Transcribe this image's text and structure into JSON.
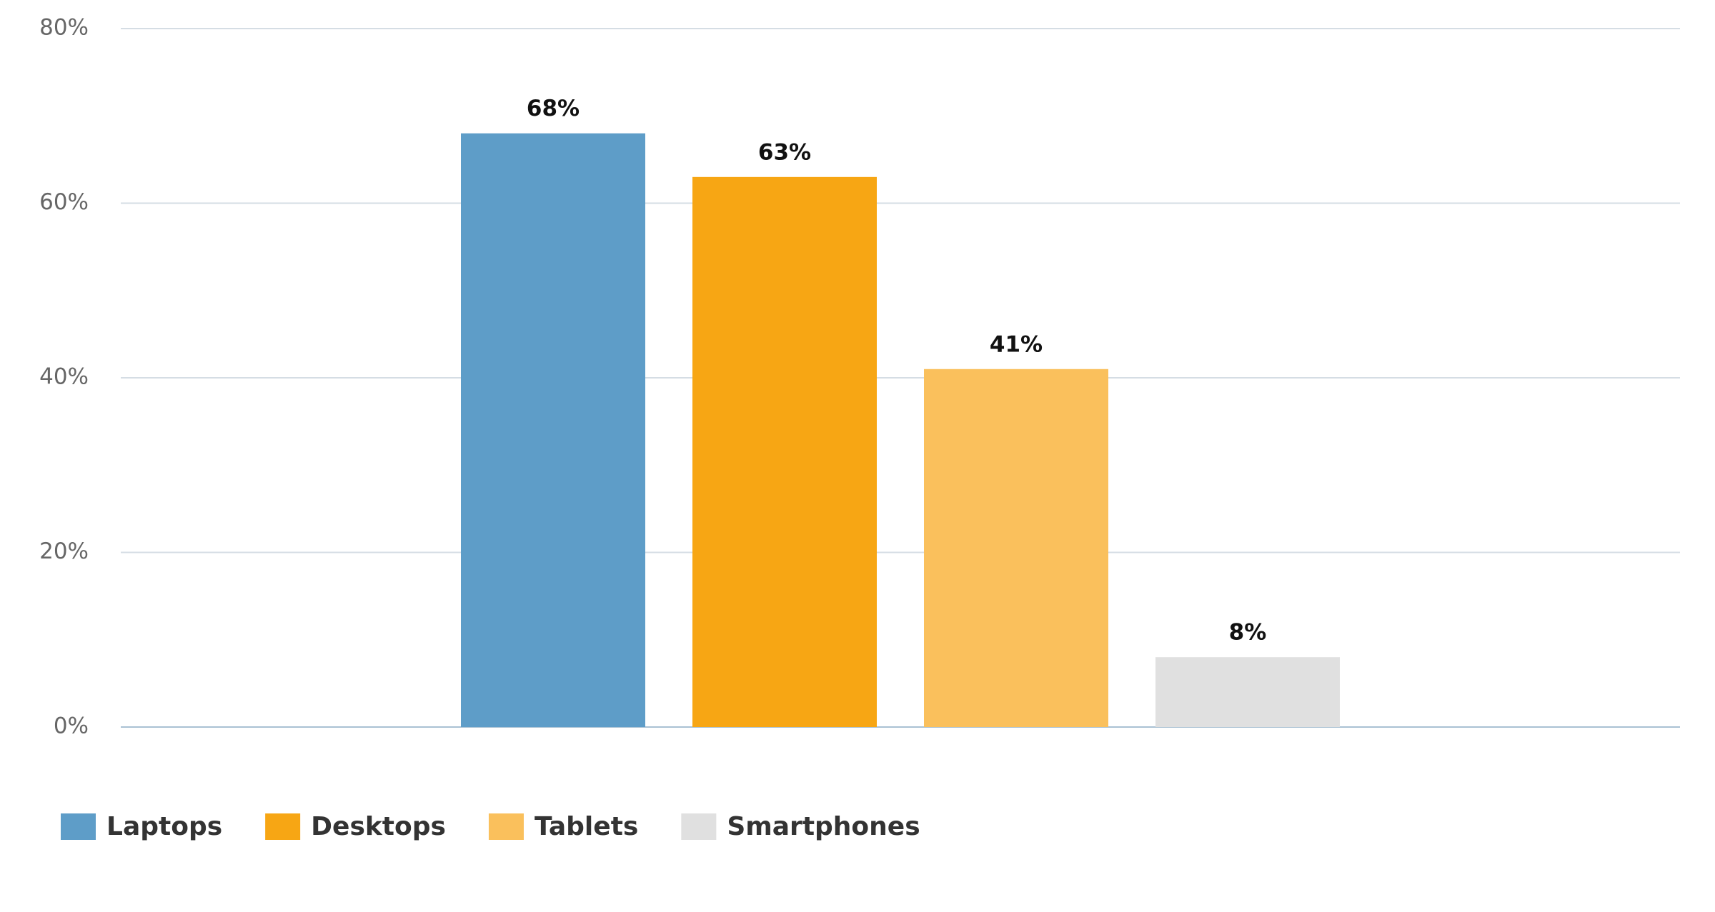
{
  "chart_data": {
    "type": "bar",
    "categories": [
      null
    ],
    "series": [
      {
        "name": "Laptops",
        "color": "#5e9dc8",
        "values": [
          68
        ],
        "value_labels": [
          "68%"
        ]
      },
      {
        "name": "Desktops",
        "color": "#f7a614",
        "values": [
          63
        ],
        "value_labels": [
          "63%"
        ]
      },
      {
        "name": "Tablets",
        "color": "#fac05c",
        "values": [
          41
        ],
        "value_labels": [
          "41%"
        ]
      },
      {
        "name": "Smartphones",
        "color": "#e0e0e0",
        "values": [
          8
        ],
        "value_labels": [
          "8%"
        ]
      }
    ],
    "ylim": [
      0,
      80
    ],
    "yticks": [
      {
        "value": 0,
        "label": "0%"
      },
      {
        "value": 20,
        "label": "20%"
      },
      {
        "value": 40,
        "label": "40%"
      },
      {
        "value": 60,
        "label": "60%"
      },
      {
        "value": 80,
        "label": "80%"
      }
    ],
    "grid": true,
    "legend": "bottom-left"
  }
}
